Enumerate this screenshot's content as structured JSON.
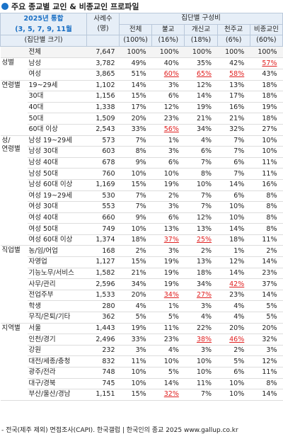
{
  "header": {
    "title": "주요 종교별 교인 & 비종교인 프로파일"
  },
  "table": {
    "corner": [
      "2025년 통합",
      "(3, 5, 7, 9, 11월"
    ],
    "sample": "사례수\n(명)",
    "span": "집단별 구성비",
    "columns": [
      "전체",
      "불교",
      "개신교",
      "천주교",
      "비종교인"
    ],
    "size_row": {
      "label": "(집단별 크기)",
      "values": [
        "(100%)",
        "(16%)",
        "(18%)",
        "(6%)",
        "(60%)"
      ]
    },
    "sections": [
      {
        "group": null,
        "rows": [
          {
            "label": "전체",
            "n": "7,647",
            "values": [
              "100%",
              "100%",
              "100%",
              "100%",
              "100%"
            ],
            "highlight": []
          }
        ]
      },
      {
        "group": "성별",
        "rows": [
          {
            "label": "남성",
            "n": "3,782",
            "values": [
              "49%",
              "40%",
              "35%",
              "42%",
              "57%"
            ],
            "highlight": [
              4
            ]
          },
          {
            "label": "여성",
            "n": "3,865",
            "values": [
              "51%",
              "60%",
              "65%",
              "58%",
              "43%"
            ],
            "highlight": [
              1,
              2,
              3
            ]
          }
        ]
      },
      {
        "group": "연령별",
        "rows": [
          {
            "label": "19~29세",
            "n": "1,102",
            "values": [
              "14%",
              "3%",
              "12%",
              "13%",
              "18%"
            ],
            "highlight": []
          },
          {
            "label": "30대",
            "n": "1,156",
            "values": [
              "15%",
              "6%",
              "14%",
              "17%",
              "18%"
            ],
            "highlight": []
          },
          {
            "label": "40대",
            "n": "1,338",
            "values": [
              "17%",
              "12%",
              "19%",
              "16%",
              "19%"
            ],
            "highlight": []
          },
          {
            "label": "50대",
            "n": "1,509",
            "values": [
              "20%",
              "23%",
              "21%",
              "21%",
              "18%"
            ],
            "highlight": []
          },
          {
            "label": "60대 이상",
            "n": "2,543",
            "values": [
              "33%",
              "56%",
              "34%",
              "32%",
              "27%"
            ],
            "highlight": [
              1
            ]
          }
        ]
      },
      {
        "group": "성/\n연령별",
        "rows": [
          {
            "label": "남성 19~29세",
            "n": "573",
            "values": [
              "7%",
              "1%",
              "4%",
              "7%",
              "10%"
            ],
            "highlight": []
          },
          {
            "label": "남성 30대",
            "n": "603",
            "values": [
              "8%",
              "3%",
              "6%",
              "7%",
              "10%"
            ],
            "highlight": []
          },
          {
            "label": "남성 40대",
            "n": "678",
            "values": [
              "9%",
              "6%",
              "7%",
              "6%",
              "11%"
            ],
            "highlight": []
          },
          {
            "label": "남성 50대",
            "n": "760",
            "values": [
              "10%",
              "10%",
              "8%",
              "7%",
              "11%"
            ],
            "highlight": []
          },
          {
            "label": "남성 60대 이상",
            "n": "1,169",
            "values": [
              "15%",
              "19%",
              "10%",
              "14%",
              "16%"
            ],
            "highlight": []
          },
          {
            "label": "여성 19~29세",
            "n": "530",
            "values": [
              "7%",
              "2%",
              "7%",
              "6%",
              "8%"
            ],
            "highlight": []
          },
          {
            "label": "여성 30대",
            "n": "553",
            "values": [
              "7%",
              "3%",
              "7%",
              "10%",
              "8%"
            ],
            "highlight": []
          },
          {
            "label": "여성 40대",
            "n": "660",
            "values": [
              "9%",
              "6%",
              "12%",
              "10%",
              "8%"
            ],
            "highlight": []
          },
          {
            "label": "여성 50대",
            "n": "749",
            "values": [
              "10%",
              "13%",
              "13%",
              "14%",
              "8%"
            ],
            "highlight": []
          },
          {
            "label": "여성 60대 이상",
            "n": "1,374",
            "values": [
              "18%",
              "37%",
              "25%",
              "18%",
              "11%"
            ],
            "highlight": [
              1,
              2
            ]
          }
        ]
      },
      {
        "group": "직업별",
        "rows": [
          {
            "label": "농/임/어업",
            "n": "168",
            "values": [
              "2%",
              "3%",
              "2%",
              "1%",
              "2%"
            ],
            "highlight": []
          },
          {
            "label": "자영업",
            "n": "1,127",
            "values": [
              "15%",
              "19%",
              "13%",
              "12%",
              "14%"
            ],
            "highlight": []
          },
          {
            "label": "기능노무/서비스",
            "n": "1,582",
            "values": [
              "21%",
              "19%",
              "18%",
              "14%",
              "23%"
            ],
            "highlight": []
          },
          {
            "label": "사무/관리",
            "n": "2,596",
            "values": [
              "34%",
              "19%",
              "34%",
              "42%",
              "37%"
            ],
            "highlight": [
              3
            ]
          },
          {
            "label": "전업주부",
            "n": "1,533",
            "values": [
              "20%",
              "34%",
              "27%",
              "23%",
              "14%"
            ],
            "highlight": [
              1,
              2
            ]
          },
          {
            "label": "학생",
            "n": "280",
            "values": [
              "4%",
              "1%",
              "3%",
              "4%",
              "5%"
            ],
            "highlight": []
          },
          {
            "label": "무직/은퇴/기타",
            "n": "362",
            "values": [
              "5%",
              "5%",
              "4%",
              "4%",
              "5%"
            ],
            "highlight": []
          }
        ]
      },
      {
        "group": "지역별",
        "rows": [
          {
            "label": "서울",
            "n": "1,443",
            "values": [
              "19%",
              "11%",
              "22%",
              "20%",
              "20%"
            ],
            "highlight": []
          },
          {
            "label": "인천/경기",
            "n": "2,496",
            "values": [
              "33%",
              "23%",
              "38%",
              "46%",
              "32%"
            ],
            "highlight": [
              2,
              3
            ]
          },
          {
            "label": "강원",
            "n": "232",
            "values": [
              "3%",
              "4%",
              "3%",
              "2%",
              "3%"
            ],
            "highlight": []
          },
          {
            "label": "대전/세종/충청",
            "n": "832",
            "values": [
              "11%",
              "10%",
              "10%",
              "5%",
              "12%"
            ],
            "highlight": []
          },
          {
            "label": "광주/전라",
            "n": "748",
            "values": [
              "10%",
              "5%",
              "10%",
              "6%",
              "11%"
            ],
            "highlight": []
          },
          {
            "label": "대구/경북",
            "n": "745",
            "values": [
              "10%",
              "14%",
              "11%",
              "10%",
              "8%"
            ],
            "highlight": []
          },
          {
            "label": "부산/울산/경남",
            "n": "1,151",
            "values": [
              "15%",
              "32%",
              "7%",
              "10%",
              "14%"
            ],
            "highlight": [
              1
            ]
          }
        ]
      }
    ]
  },
  "footer": "- 전국(제주 제외) 면접조사(CAPI). 한국갤럽 | 한국인의 종교 2025 www.gallup.co.kr"
}
